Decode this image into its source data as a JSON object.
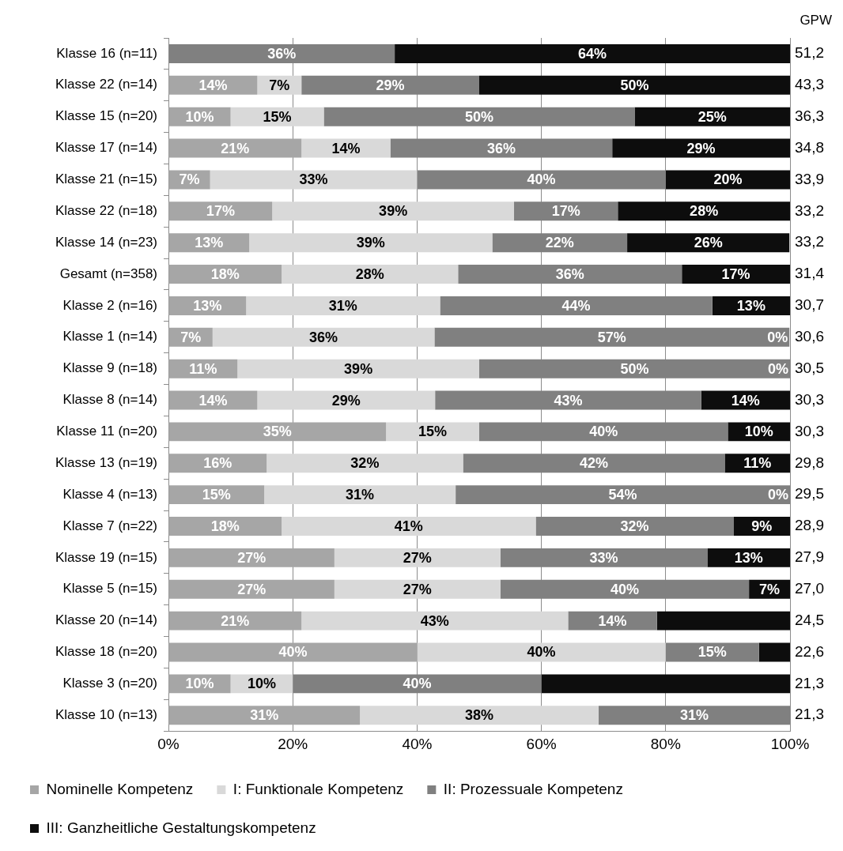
{
  "chart_data": {
    "type": "bar",
    "orientation": "horizontal",
    "stacked": true,
    "categories": [
      "Klasse 16 (n=11)",
      "Klasse 22 (n=14)",
      "Klasse 15 (n=20)",
      "Klasse 17 (n=14)",
      "Klasse 21 (n=15)",
      "Klasse 22 (n=18)",
      "Klasse 14 (n=23)",
      "Gesamt (n=358)",
      "Klasse 2 (n=16)",
      "Klasse 1 (n=14)",
      "Klasse 9 (n=18)",
      "Klasse 8 (n=14)",
      "Klasse 11 (n=20)",
      "Klasse 13 (n=19)",
      "Klasse 4 (n=13)",
      "Klasse 7 (n=22)",
      "Klasse 19 (n=15)",
      "Klasse 5 (n=15)",
      "Klasse 20 (n=14)",
      "Klasse 18 (n=20)",
      "Klasse 3 (n=20)",
      "Klasse 10 (n=13)"
    ],
    "y2label": "GPW",
    "y2_categories": [
      "51,2",
      "43,3",
      "36,3",
      "34,8",
      "33,9",
      "33,2",
      "33,2",
      "31,4",
      "30,7",
      "30,6",
      "30,5",
      "30,3",
      "30,3",
      "29,8",
      "29,5",
      "28,9",
      "27,9",
      "27,0",
      "24,5",
      "22,6",
      "21,3",
      "21,3"
    ],
    "series": [
      {
        "name": "Nominelle Kompetenz",
        "color": "#a6a6a6",
        "values": [
          0,
          14.3,
          10,
          21.4,
          6.7,
          16.7,
          13.0,
          18.2,
          12.5,
          7.1,
          11.1,
          14.3,
          35,
          15.8,
          15.4,
          18.2,
          26.7,
          26.7,
          21.4,
          40,
          10,
          30.8
        ],
        "value_labels": [
          null,
          "14%",
          "10%",
          "21%",
          "7%",
          "17%",
          "13%",
          "18%",
          "13%",
          "7%",
          "11%",
          "14%",
          "35%",
          "16%",
          "15%",
          "18%",
          "27%",
          "27%",
          "21%",
          "40%",
          "10%",
          "31%"
        ]
      },
      {
        "name": "I: Funktionale Kompetenz",
        "color": "#d9d9d9",
        "values": [
          0,
          7.1,
          15,
          14.3,
          33.3,
          38.9,
          39.1,
          28.4,
          31.2,
          35.7,
          38.9,
          28.6,
          15,
          31.6,
          30.8,
          40.9,
          26.7,
          26.7,
          42.9,
          40,
          10,
          38.4
        ],
        "value_labels": [
          null,
          "7%",
          "15%",
          "14%",
          "33%",
          "39%",
          "39%",
          "28%",
          "31%",
          "36%",
          "39%",
          "29%",
          "15%",
          "32%",
          "31%",
          "41%",
          "27%",
          "27%",
          "43%",
          "40%",
          "10%",
          "38%"
        ]
      },
      {
        "name": "II: Prozessuale Kompetenz",
        "color": "#808080",
        "values": [
          36.4,
          28.6,
          50,
          35.7,
          40,
          16.7,
          21.7,
          36.0,
          43.8,
          57.1,
          50,
          42.8,
          40,
          42.1,
          53.8,
          31.8,
          33.3,
          40,
          14.3,
          15,
          40,
          30.8
        ],
        "value_labels": [
          "36%",
          "29%",
          "50%",
          "36%",
          "40%",
          "17%",
          "22%",
          "36%",
          "44%",
          "57%",
          "50%",
          "43%",
          "40%",
          "42%",
          "54%",
          "32%",
          "33%",
          "40%",
          "14%",
          "15%",
          "40%",
          "31%"
        ]
      },
      {
        "name": "III: Ganzheitliche Gestaltungskompetenz",
        "color": "#0d0d0d",
        "values": [
          63.6,
          50,
          25,
          28.6,
          20,
          27.7,
          26.1,
          17.4,
          12.5,
          0,
          0,
          14.3,
          10,
          10.5,
          0,
          9.1,
          13.3,
          6.6,
          21.4,
          5,
          40,
          0
        ],
        "value_labels": [
          "64%",
          "50%",
          "25%",
          "29%",
          "20%",
          "28%",
          "26%",
          "17%",
          "13%",
          "0%",
          "0%",
          "14%",
          "10%",
          "11%",
          "0%",
          "9%",
          "13%",
          "7%",
          null,
          null,
          null,
          null
        ]
      }
    ],
    "xlim": [
      0,
      100
    ],
    "xticks": [
      {
        "value": 0,
        "label": "0%"
      },
      {
        "value": 20,
        "label": "20%"
      },
      {
        "value": 40,
        "label": "40%"
      },
      {
        "value": 60,
        "label": "60%"
      },
      {
        "value": 80,
        "label": "80%"
      },
      {
        "value": 100,
        "label": "100%"
      }
    ],
    "grid": "x",
    "legend": "bottom"
  }
}
